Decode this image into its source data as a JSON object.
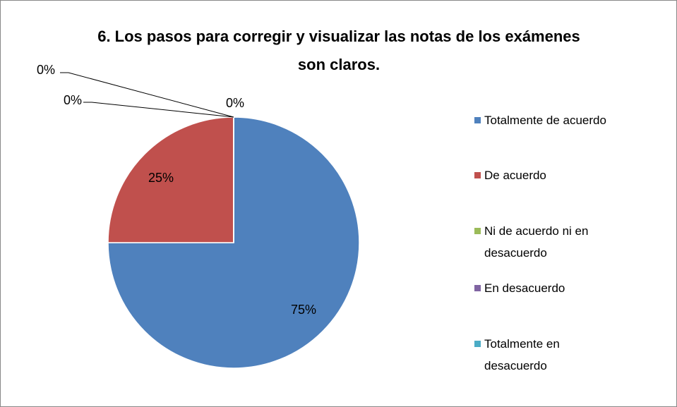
{
  "chart_data": {
    "type": "pie",
    "title": "6. Los pasos para corregir y visualizar las notas de los exámenes son claros.",
    "categories": [
      "Totalmente de acuerdo",
      "De acuerdo",
      "Ni de acuerdo ni en desacuerdo",
      "En desacuerdo",
      "Totalmente en desacuerdo"
    ],
    "values": [
      75,
      25,
      0,
      0,
      0
    ],
    "value_labels": [
      "75%",
      "25%",
      "0%",
      "0%",
      "0%"
    ],
    "colors": [
      "#4f81bd",
      "#c0504d",
      "#9bbb59",
      "#8064a2",
      "#4bacc6"
    ],
    "legend": "right"
  }
}
